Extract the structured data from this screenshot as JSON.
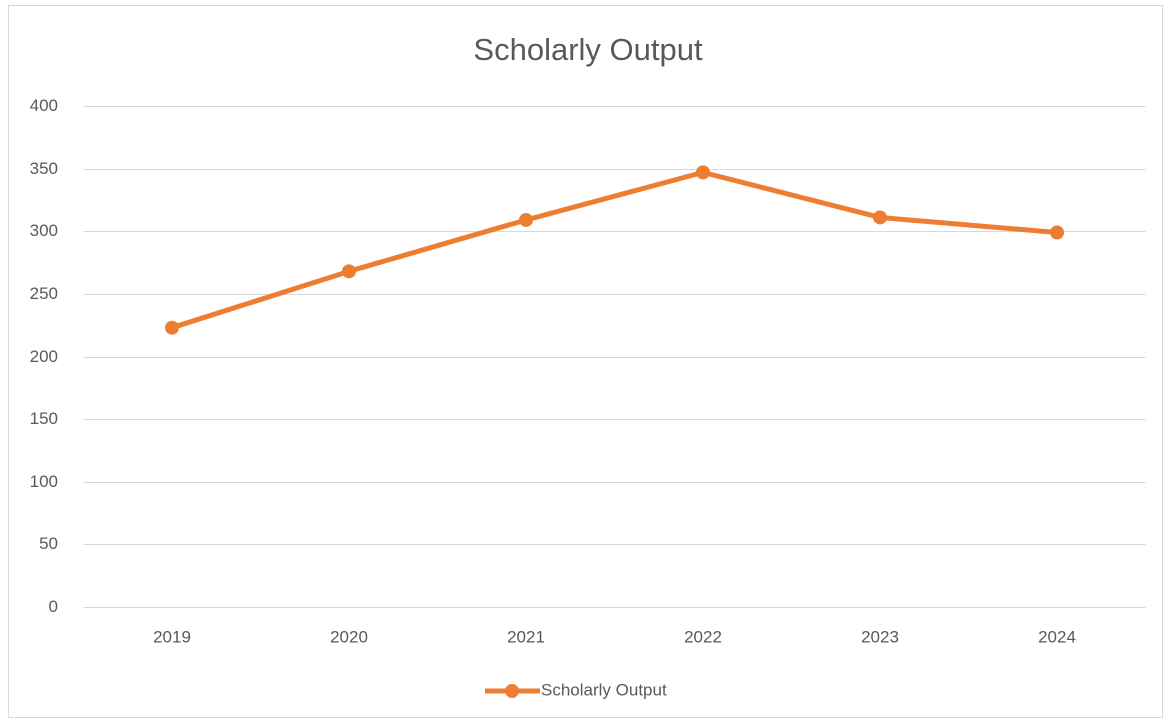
{
  "chart_data": {
    "type": "line",
    "title": "Scholarly Output",
    "categories": [
      "2019",
      "2020",
      "2021",
      "2022",
      "2023",
      "2024"
    ],
    "series": [
      {
        "name": "Scholarly Output",
        "color": "#ed7d31",
        "values": [
          223,
          268,
          309,
          347,
          311,
          299
        ]
      }
    ],
    "ylim": [
      0,
      400
    ],
    "yticks": [
      0,
      50,
      100,
      150,
      200,
      250,
      300,
      350,
      400
    ],
    "grid": true,
    "legend": "bottom"
  }
}
